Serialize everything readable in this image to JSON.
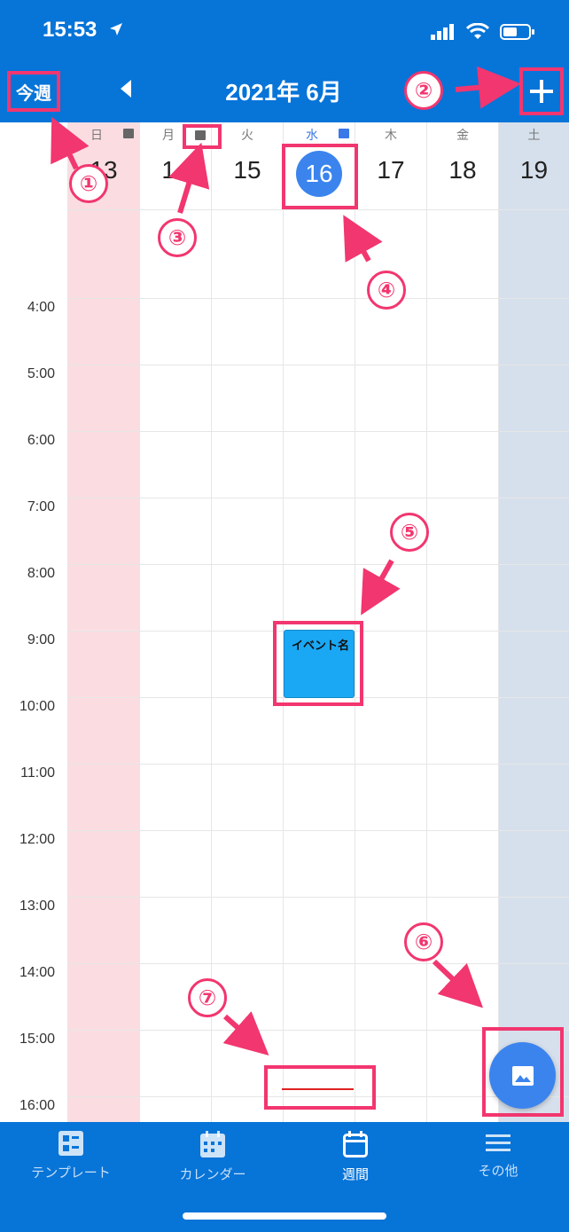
{
  "status": {
    "time": "15:53"
  },
  "header": {
    "this_week": "今週",
    "month_title": "2021年 6月"
  },
  "days": [
    {
      "dow": "日",
      "date": "13"
    },
    {
      "dow": "月",
      "date": "14"
    },
    {
      "dow": "火",
      "date": "15"
    },
    {
      "dow": "水",
      "date": "16"
    },
    {
      "dow": "木",
      "date": "17"
    },
    {
      "dow": "金",
      "date": "18"
    },
    {
      "dow": "土",
      "date": "19"
    }
  ],
  "times": [
    "4:00",
    "5:00",
    "6:00",
    "7:00",
    "8:00",
    "9:00",
    "10:00",
    "11:00",
    "12:00",
    "13:00",
    "14:00",
    "15:00",
    "16:00"
  ],
  "event": {
    "title": "イベント名"
  },
  "badges": [
    "①",
    "②",
    "③",
    "④",
    "⑤",
    "⑥",
    "⑦"
  ],
  "tabs": [
    {
      "label": "テンプレート",
      "icon": "template-icon"
    },
    {
      "label": "カレンダー",
      "icon": "calendar-icon"
    },
    {
      "label": "週間",
      "icon": "week-icon"
    },
    {
      "label": "その他",
      "icon": "menu-icon"
    }
  ],
  "colors": {
    "bar": "#0774d8",
    "annotation": "#f2366f",
    "sunday": "#fbdde1",
    "saturday": "#d6e0ec",
    "today": "#3b84ee",
    "event": "#1aa8f5",
    "now_line": "#e02222"
  }
}
